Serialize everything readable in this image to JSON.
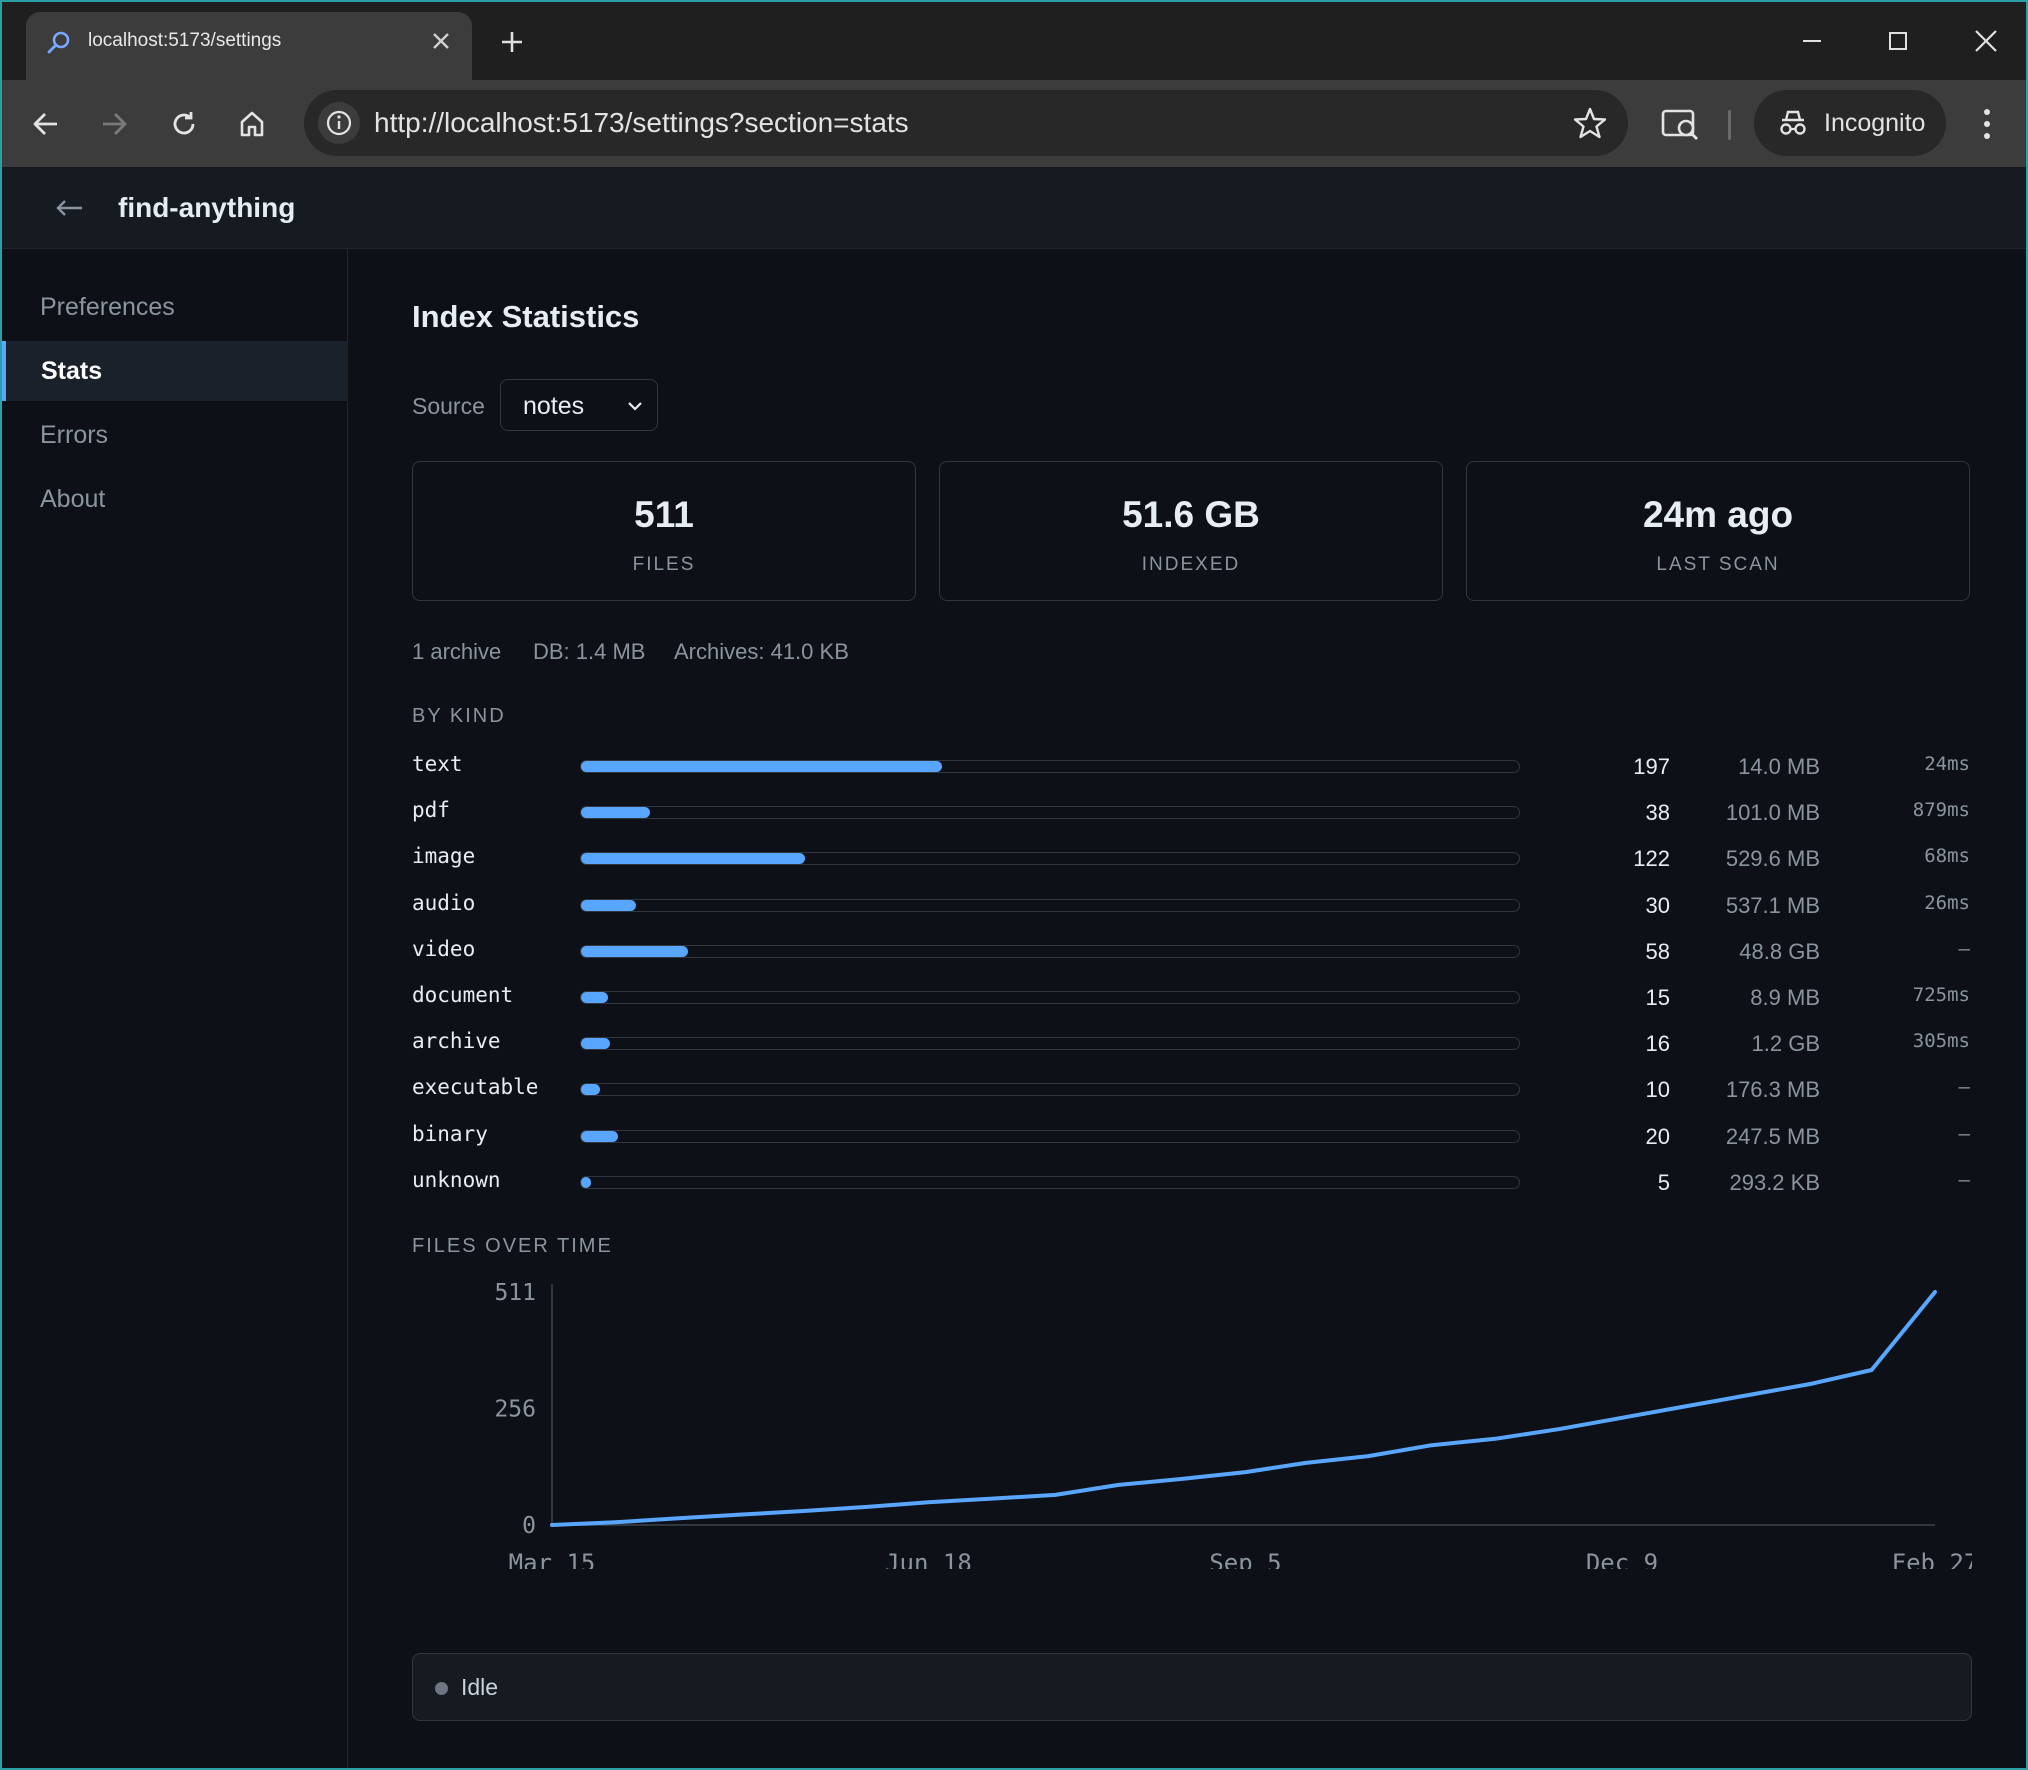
{
  "browser": {
    "tab_title": "localhost:5173/settings",
    "url": "http://localhost:5173/settings?section=stats",
    "incognito_label": "Incognito"
  },
  "app": {
    "title": "find-anything"
  },
  "sidebar": {
    "items": [
      {
        "label": "Preferences",
        "active": false
      },
      {
        "label": "Stats",
        "active": true
      },
      {
        "label": "Errors",
        "active": false
      },
      {
        "label": "About",
        "active": false
      }
    ]
  },
  "main": {
    "heading": "Index Statistics",
    "source_label": "Source",
    "source_value": "notes",
    "cards": [
      {
        "value": "511",
        "label": "FILES"
      },
      {
        "value": "51.6 GB",
        "label": "INDEXED"
      },
      {
        "value": "24m ago",
        "label": "LAST SCAN"
      }
    ],
    "meta": {
      "archives": "1 archive",
      "db": "DB: 1.4 MB",
      "archives_size": "Archives: 41.0 KB"
    },
    "by_kind_heading": "BY KIND",
    "kinds": [
      {
        "name": "text",
        "count": "197",
        "size": "14.0 MB",
        "time": "24ms",
        "fraction": 0.385
      },
      {
        "name": "pdf",
        "count": "38",
        "size": "101.0 MB",
        "time": "879ms",
        "fraction": 0.074
      },
      {
        "name": "image",
        "count": "122",
        "size": "529.6 MB",
        "time": "68ms",
        "fraction": 0.239
      },
      {
        "name": "audio",
        "count": "30",
        "size": "537.1 MB",
        "time": "26ms",
        "fraction": 0.059
      },
      {
        "name": "video",
        "count": "58",
        "size": "48.8 GB",
        "time": "–",
        "fraction": 0.114
      },
      {
        "name": "document",
        "count": "15",
        "size": "8.9 MB",
        "time": "725ms",
        "fraction": 0.029
      },
      {
        "name": "archive",
        "count": "16",
        "size": "1.2 GB",
        "time": "305ms",
        "fraction": 0.031
      },
      {
        "name": "executable",
        "count": "10",
        "size": "176.3 MB",
        "time": "–",
        "fraction": 0.02
      },
      {
        "name": "binary",
        "count": "20",
        "size": "247.5 MB",
        "time": "–",
        "fraction": 0.039
      },
      {
        "name": "unknown",
        "count": "5",
        "size": "293.2 KB",
        "time": "–",
        "fraction": 0.01
      }
    ],
    "over_time_heading": "FILES OVER TIME",
    "status_text": "Idle"
  },
  "chart_data": {
    "type": "line",
    "title": "",
    "xlabel": "",
    "ylabel": "",
    "y_ticks": [
      "511",
      "256",
      "0"
    ],
    "x_ticks": [
      "Mar 15",
      "Jun 18",
      "Sep 5",
      "Dec 9",
      "Feb 27"
    ],
    "ylim": [
      0,
      511
    ],
    "x_range_days": [
      0,
      349
    ],
    "line_color": "#58a6ff",
    "series": [
      {
        "x_days": [
          0,
          16,
          32,
          48,
          64,
          80,
          95,
          111,
          127,
          143,
          159,
          175,
          190,
          206,
          222,
          238,
          254,
          270,
          286,
          302,
          318,
          333,
          349
        ],
        "values": [
          0,
          6,
          15,
          23,
          31,
          40,
          50,
          58,
          66,
          88,
          101,
          116,
          136,
          151,
          175,
          189,
          210,
          235,
          260,
          285,
          310,
          340,
          511
        ]
      }
    ]
  },
  "colors": {
    "accent": "#58a6ff",
    "background": "#0d1117",
    "panel": "#161b22",
    "border": "#30363d"
  }
}
